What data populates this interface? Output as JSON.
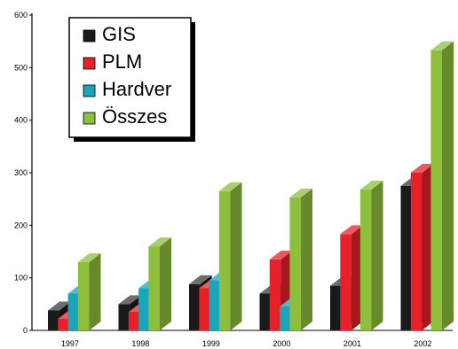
{
  "chart_data": {
    "type": "bar",
    "categories": [
      "1997",
      "1998",
      "1999",
      "2000",
      "2001",
      "2002"
    ],
    "series": [
      {
        "name": "GIS",
        "values": [
          38,
          50,
          88,
          70,
          85,
          275
        ],
        "color": "#1a1a1a"
      },
      {
        "name": "PLM",
        "values": [
          22,
          35,
          80,
          135,
          183,
          300
        ],
        "color": "#e8202a"
      },
      {
        "name": "Hardver",
        "values": [
          70,
          80,
          95,
          45,
          0,
          0
        ],
        "color": "#18a6b8"
      },
      {
        "name": "Összes",
        "values": [
          130,
          160,
          265,
          253,
          268,
          533
        ],
        "color": "#8dbf3c"
      }
    ],
    "ylim": [
      0,
      600
    ],
    "yticks": [
      0,
      100,
      200,
      300,
      400,
      500,
      600
    ],
    "title": "",
    "xlabel": "",
    "ylabel": "",
    "legend_position": "top-left",
    "style": "3d"
  }
}
